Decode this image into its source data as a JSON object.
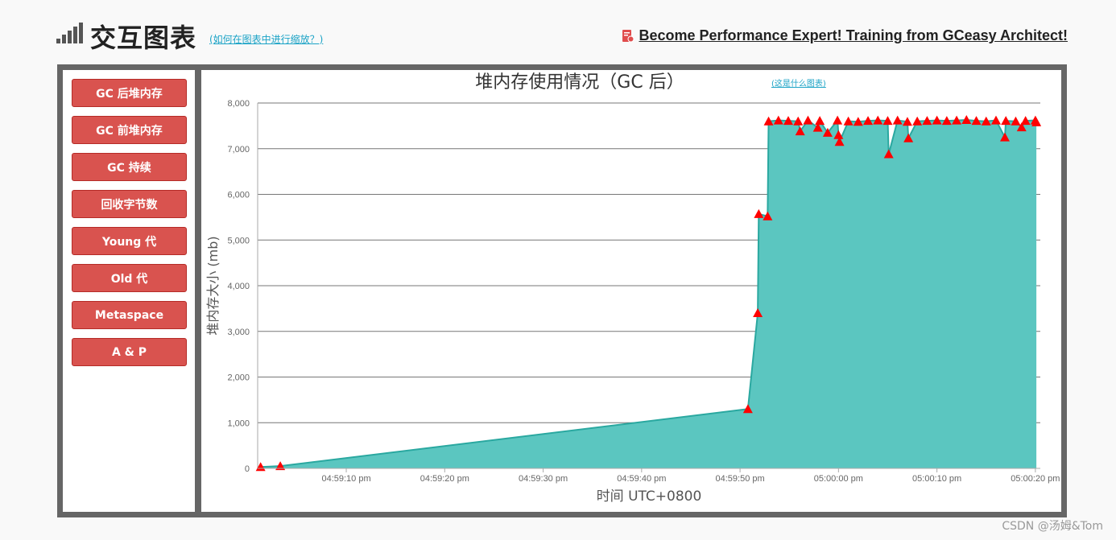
{
  "header": {
    "title": "交互图表",
    "zoom_hint": "(如何在图表中进行缩放？)",
    "promo": "Become Performance Expert! Training from GCeasy Architect!"
  },
  "sidebar": {
    "items": [
      {
        "label": "GC 后堆内存"
      },
      {
        "label": "GC 前堆内存"
      },
      {
        "label": "GC 持续"
      },
      {
        "label": "回收字节数"
      },
      {
        "label": "Young 代"
      },
      {
        "label": "Old 代"
      },
      {
        "label": "Metaspace"
      },
      {
        "label": "A & P"
      }
    ]
  },
  "chart_data": {
    "type": "area",
    "title": "堆内存使用情况（GC 后）",
    "title_link": "(这是什么图表)",
    "xlabel": "时间 UTC+0800",
    "ylabel": "堆内存大小 (mb)",
    "ylim": [
      0,
      8000
    ],
    "yticks": [
      0,
      1000,
      2000,
      3000,
      4000,
      5000,
      6000,
      7000,
      8000
    ],
    "ytick_labels": [
      "0",
      "1,000",
      "2,000",
      "3,000",
      "4,000",
      "5,000",
      "6,000",
      "7,000",
      "8,000"
    ],
    "xlim": [
      "04:59:01",
      "04:59:20.5"
    ],
    "xticks": [
      "04:59:10",
      "04:59:20",
      "04:59:30",
      "04:59:40",
      "04:59:50",
      "05:00:00",
      "05:00:10",
      "05:00:20"
    ],
    "xtick_labels": [
      "04:59:10 pm",
      "04:59:20 pm",
      "04:59:30 pm",
      "04:59:40 pm",
      "04:59:50 pm",
      "05:00:00 pm",
      "05:00:10 pm",
      "05:00:20 pm"
    ],
    "grid": true,
    "fill_color": "#5bc6c0",
    "line_color": "#2aa8a0",
    "marker_color": "#ff0000",
    "series": [
      {
        "x": [
          "04:59:01.3",
          "04:59:03.3",
          "04:59:50.8",
          "04:59:51.8",
          "04:59:51.9",
          "04:59:52.8",
          "04:59:52.9",
          "04:59:53.9",
          "04:59:54.9",
          "04:59:55.9",
          "04:59:56.1",
          "04:59:56.9",
          "04:59:57.9",
          "04:59:58.1",
          "04:59:58.9",
          "04:59:59.9",
          "05:00:00.0",
          "05:00:00.1",
          "05:00:01.0",
          "05:00:02.0",
          "05:00:03.0",
          "05:00:04.0",
          "05:00:05.0",
          "05:00:05.1",
          "05:00:06.0",
          "05:00:07.0",
          "05:00:07.1",
          "05:00:08.0",
          "05:00:09.0",
          "05:00:10.0",
          "05:00:11.0",
          "05:00:12.0",
          "05:00:13.0",
          "05:00:14.0",
          "05:00:15.0",
          "05:00:16.0",
          "05:00:16.9",
          "05:00:17.0",
          "05:00:18.0",
          "05:00:18.6",
          "05:00:19.0",
          "05:00:20.0",
          "05:00:20.1"
        ],
        "y": [
          30,
          50,
          1300,
          3400,
          5570,
          5520,
          7600,
          7620,
          7610,
          7600,
          7380,
          7620,
          7460,
          7610,
          7350,
          7620,
          7300,
          7150,
          7600,
          7590,
          7610,
          7620,
          7610,
          6880,
          7620,
          7590,
          7230,
          7600,
          7610,
          7620,
          7610,
          7620,
          7630,
          7610,
          7600,
          7620,
          7250,
          7610,
          7600,
          7470,
          7610,
          7620,
          7580
        ]
      }
    ]
  },
  "watermark": "CSDN @汤姆&Tom"
}
